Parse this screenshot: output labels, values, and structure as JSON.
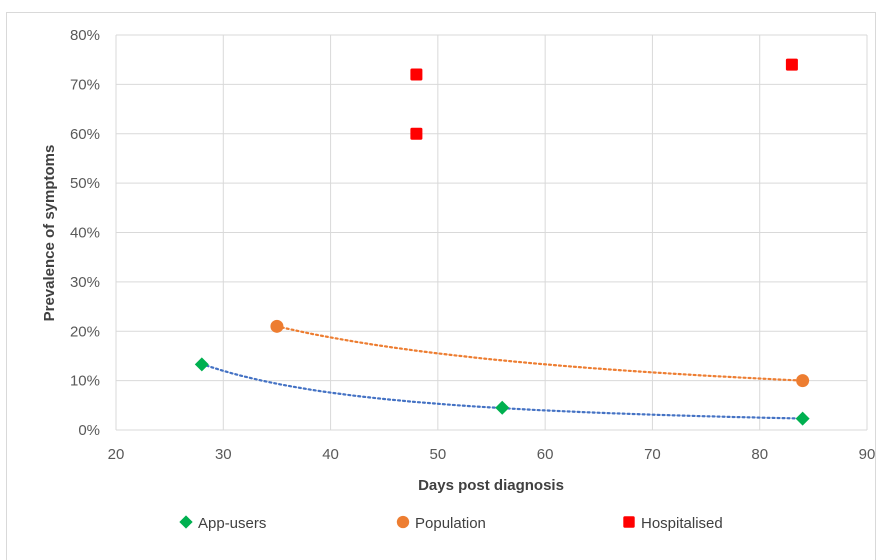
{
  "chart_data": {
    "type": "scatter",
    "title": "",
    "xlabel": "Days post diagnosis",
    "ylabel": "Prevalence of symptoms",
    "xlim": [
      20,
      90
    ],
    "ylim": [
      0,
      0.8
    ],
    "x_ticks": [
      "20",
      "30",
      "40",
      "50",
      "60",
      "70",
      "80",
      "90"
    ],
    "y_ticks": [
      "0%",
      "10%",
      "20%",
      "30%",
      "40%",
      "50%",
      "60%",
      "70%",
      "80%"
    ],
    "grid": true,
    "legend_position": "bottom",
    "series": [
      {
        "name": "App-users",
        "marker": "diamond",
        "color": "#00b050",
        "trendline": "power, dotted",
        "trend_color": "#4472c4",
        "points": [
          [
            28,
            0.133
          ],
          [
            56,
            0.045
          ],
          [
            84,
            0.023
          ]
        ]
      },
      {
        "name": "Population",
        "marker": "circle",
        "color": "#ed7d31",
        "trendline": "power, dotted",
        "trend_color": "#ed7d31",
        "points": [
          [
            35,
            0.21
          ],
          [
            84,
            0.1
          ]
        ]
      },
      {
        "name": "Hospitalised",
        "marker": "square",
        "color": "#ff0000",
        "points": [
          [
            48,
            0.72
          ],
          [
            48,
            0.6
          ],
          [
            83,
            0.74
          ]
        ]
      }
    ]
  }
}
